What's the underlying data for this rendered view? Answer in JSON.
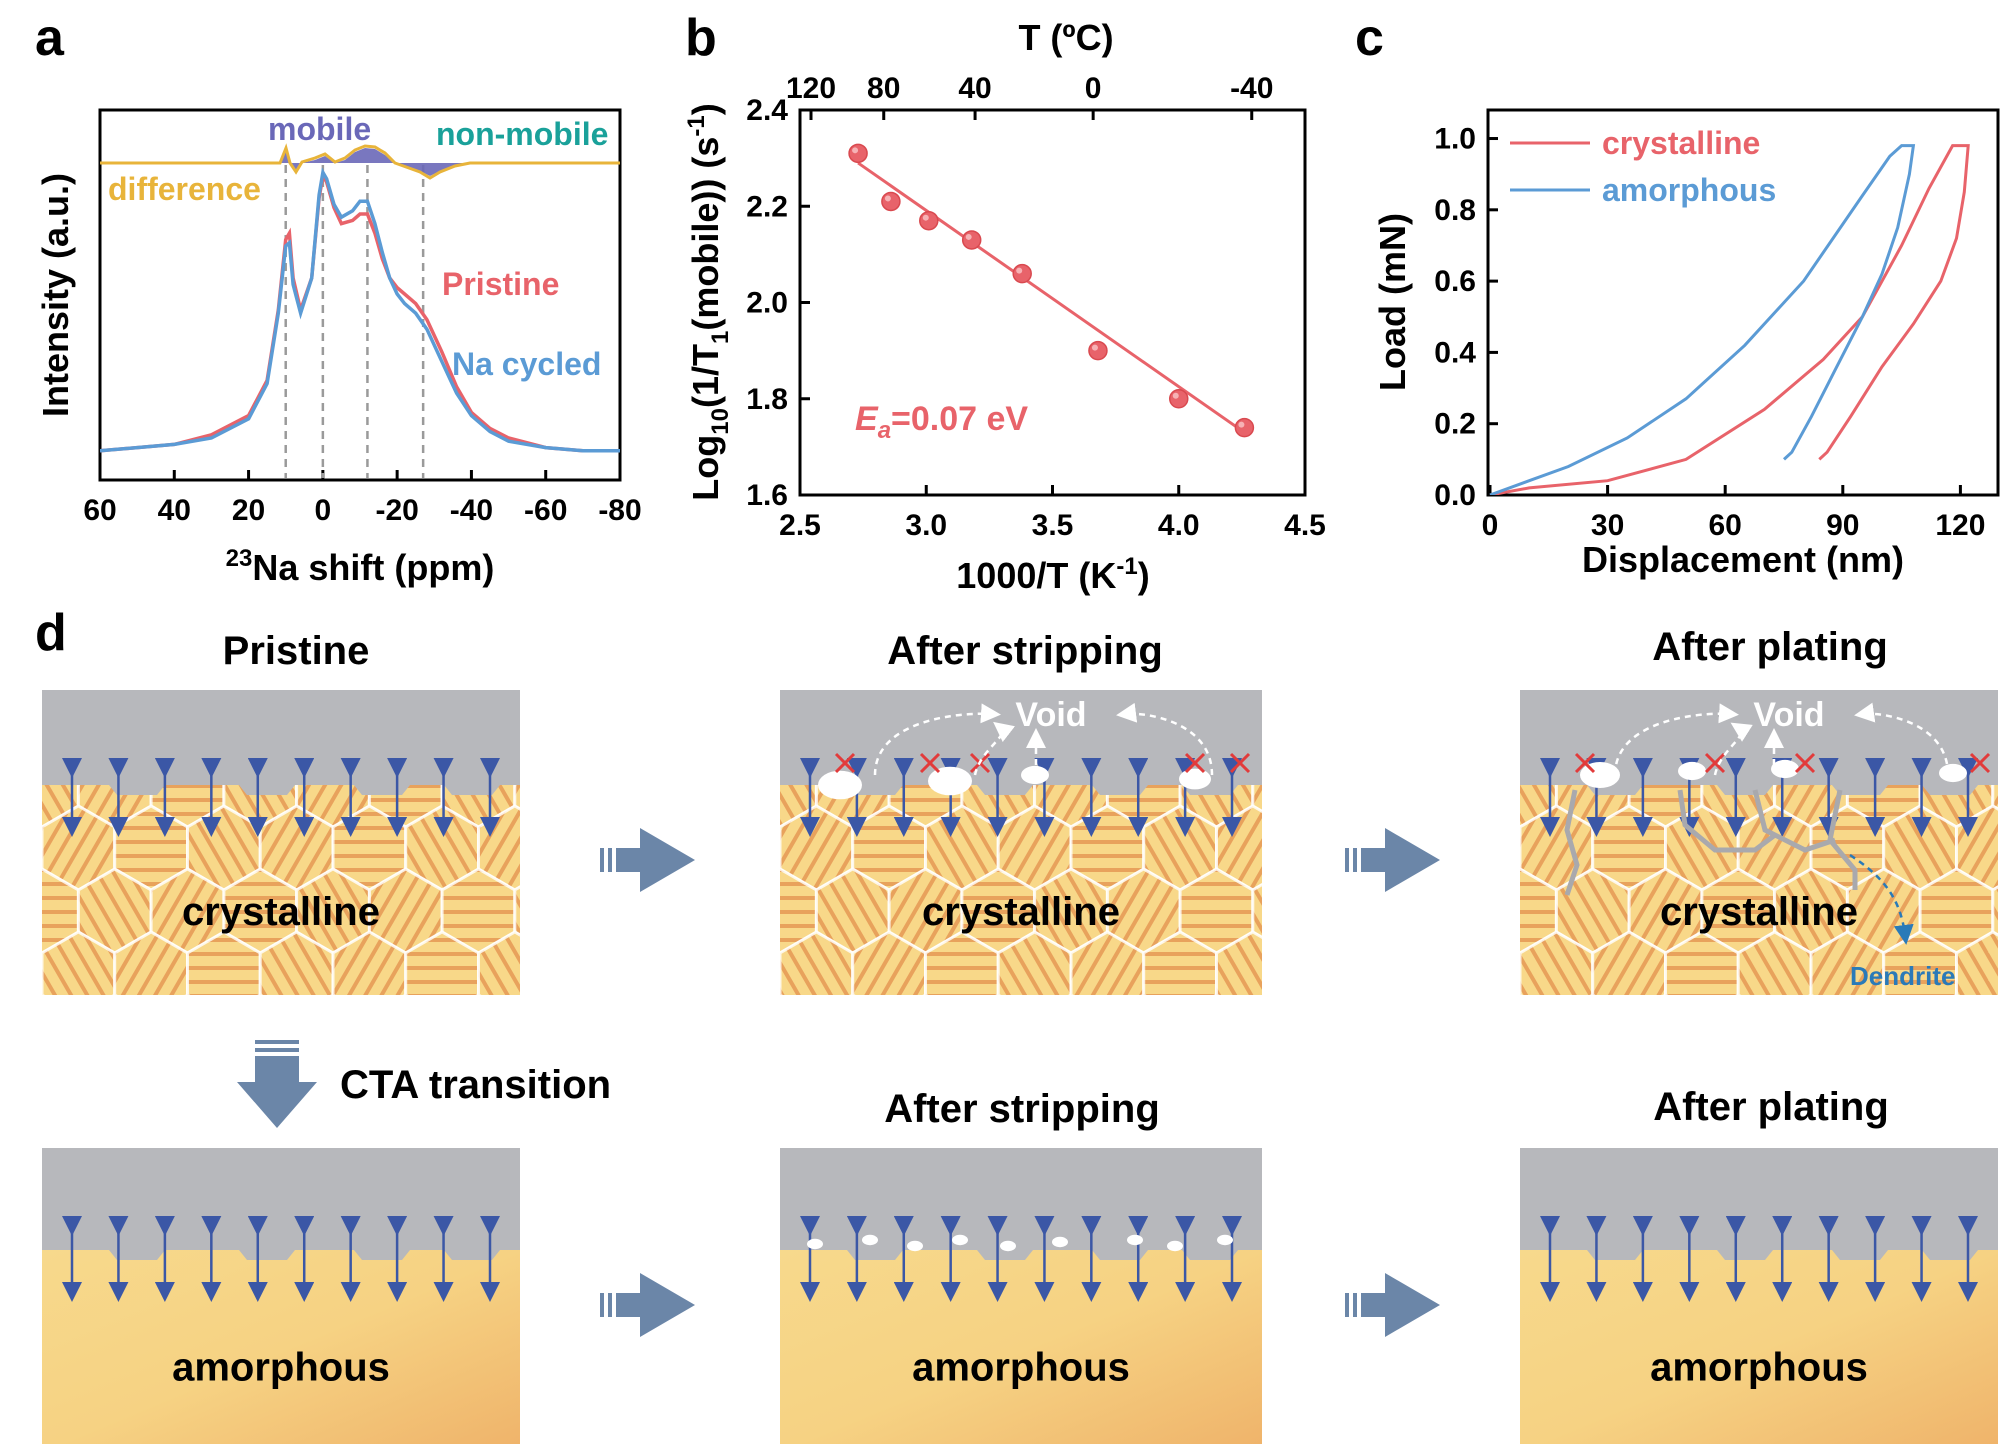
{
  "panels": {
    "a": {
      "letter": "a",
      "labels": {
        "mobile": "mobile",
        "non_mobile": "non-mobile",
        "difference": "difference",
        "pristine": "Pristine",
        "na_cycled": "Na cycled"
      },
      "colors": {
        "pristine": "#e8636a",
        "na_cycled": "#5b9bd5",
        "difference": "#e8b43a",
        "fill": "#6a68b8"
      }
    },
    "b": {
      "letter": "b",
      "top_axis_title": "T (ºC)",
      "top_ticks": [
        "120",
        "80",
        "40",
        "0",
        "-40"
      ],
      "ea_label": "=0.07 eV",
      "ea_symbol": "E",
      "ea_sub": "a"
    },
    "c": {
      "letter": "c",
      "legend": [
        "crystalline",
        "amorphous"
      ]
    },
    "d": {
      "letter": "d",
      "titles": {
        "pristine": "Pristine",
        "after_stripping": "After stripping",
        "after_plating": "After plating"
      },
      "cta_label": "CTA transition",
      "void_label": "Void",
      "dendrite_label": "Dendrite",
      "crystalline": "crystalline",
      "amorphous": "amorphous"
    }
  },
  "chart_data": [
    {
      "type": "line",
      "title": "",
      "xlabel": "23Na shift (ppm)",
      "ylabel": "Intensity (a.u.)",
      "xlim": [
        60,
        -80
      ],
      "x_ticks": [
        "60",
        "40",
        "20",
        "0",
        "-20",
        "-40",
        "-60",
        "-80"
      ],
      "dashed_lines_ppm": [
        10,
        0,
        -12,
        -27
      ],
      "series": [
        {
          "name": "Pristine",
          "color": "#e8636a",
          "x": [
            60,
            40,
            30,
            20,
            15,
            12,
            10,
            9,
            8,
            6,
            3,
            1,
            0,
            -1,
            -3,
            -5,
            -8,
            -10,
            -12,
            -14,
            -16,
            -18,
            -20,
            -22,
            -25,
            -28,
            -32,
            -36,
            -40,
            -45,
            -50,
            -60,
            -70,
            -80
          ],
          "values": [
            0.06,
            0.08,
            0.11,
            0.17,
            0.28,
            0.5,
            0.72,
            0.74,
            0.6,
            0.5,
            0.6,
            0.85,
            0.92,
            0.9,
            0.82,
            0.77,
            0.78,
            0.8,
            0.8,
            0.74,
            0.66,
            0.6,
            0.57,
            0.55,
            0.52,
            0.47,
            0.37,
            0.26,
            0.18,
            0.13,
            0.1,
            0.07,
            0.06,
            0.06
          ]
        },
        {
          "name": "Na cycled",
          "color": "#5b9bd5",
          "x": [
            60,
            40,
            30,
            20,
            15,
            12,
            10,
            9,
            8,
            6,
            3,
            1,
            0,
            -1,
            -3,
            -5,
            -8,
            -10,
            -12,
            -14,
            -16,
            -18,
            -20,
            -22,
            -25,
            -28,
            -32,
            -36,
            -40,
            -45,
            -50,
            -60,
            -70,
            -80
          ],
          "values": [
            0.06,
            0.08,
            0.1,
            0.16,
            0.27,
            0.49,
            0.7,
            0.71,
            0.58,
            0.49,
            0.6,
            0.86,
            0.93,
            0.91,
            0.83,
            0.79,
            0.81,
            0.84,
            0.84,
            0.77,
            0.68,
            0.6,
            0.55,
            0.52,
            0.49,
            0.44,
            0.34,
            0.24,
            0.17,
            0.12,
            0.09,
            0.07,
            0.06,
            0.06
          ]
        }
      ]
    },
    {
      "type": "scatter",
      "title": "",
      "xlabel": "1000/T (K⁻¹)",
      "ylabel": "Log10(1/T1(mobile)) (s⁻¹)",
      "xlim": [
        2.5,
        4.5
      ],
      "ylim": [
        1.6,
        2.4
      ],
      "x_ticks": [
        "2.5",
        "3.0",
        "3.5",
        "4.0",
        "4.5"
      ],
      "y_ticks": [
        "1.6",
        "1.8",
        "2.0",
        "2.2",
        "2.4"
      ],
      "series": [
        {
          "name": "data",
          "x": [
            2.73,
            2.86,
            3.01,
            3.18,
            3.38,
            3.68,
            4.0,
            4.26
          ],
          "values": [
            2.31,
            2.21,
            2.17,
            2.13,
            2.06,
            1.9,
            1.8,
            1.74
          ]
        },
        {
          "name": "fit",
          "x": [
            2.73,
            4.26
          ],
          "values": [
            2.29,
            1.73
          ]
        }
      ],
      "color": "#e8636a"
    },
    {
      "type": "line",
      "title": "",
      "xlabel": "Displacement (nm)",
      "ylabel": "Load (mN)",
      "xlim": [
        0,
        125
      ],
      "ylim": [
        0,
        1.08
      ],
      "x_ticks": [
        "0",
        "30",
        "60",
        "90",
        "120"
      ],
      "y_ticks": [
        "0.0",
        "0.2",
        "0.4",
        "0.6",
        "0.8",
        "1.0"
      ],
      "series": [
        {
          "name": "crystalline",
          "color": "#e8636a",
          "x": [
            0,
            10,
            30,
            50,
            70,
            85,
            95,
            105,
            112,
            118,
            121,
            122,
            121,
            119,
            115,
            108,
            100,
            92,
            86,
            84
          ],
          "values": [
            0,
            0.02,
            0.04,
            0.1,
            0.24,
            0.38,
            0.5,
            0.7,
            0.86,
            0.98,
            0.98,
            0.98,
            0.85,
            0.72,
            0.6,
            0.48,
            0.36,
            0.22,
            0.12,
            0.1
          ]
        },
        {
          "name": "amorphous",
          "color": "#5b9bd5",
          "x": [
            0,
            10,
            20,
            35,
            50,
            65,
            80,
            95,
            102,
            105,
            107,
            108,
            107,
            104,
            100,
            95,
            88,
            82,
            77,
            75
          ],
          "values": [
            0,
            0.04,
            0.08,
            0.16,
            0.27,
            0.42,
            0.6,
            0.84,
            0.95,
            0.98,
            0.98,
            0.98,
            0.9,
            0.75,
            0.62,
            0.5,
            0.35,
            0.22,
            0.12,
            0.1
          ]
        }
      ]
    }
  ]
}
